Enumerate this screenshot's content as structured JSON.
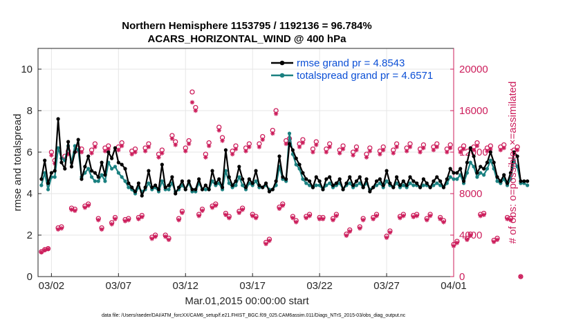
{
  "chart_data": {
    "type": "line",
    "title": "Northern Hemisphere 1153795 / 1192136 = 96.784%",
    "subtitle": "ACARS_HORIZONTAL_WIND @ 400 hPa",
    "xlabel": "Mar.01,2015 00:00:00 start",
    "ylabel": "rmse and totalspread",
    "ylabel_right": "# of obs: o=possible; ×=assimilated",
    "x_ticks": [
      "03/02",
      "03/07",
      "03/12",
      "03/17",
      "03/22",
      "03/27",
      "04/01"
    ],
    "y_ticks": [
      "0",
      "2",
      "4",
      "6",
      "8",
      "10"
    ],
    "y2_ticks": [
      "0",
      "4000",
      "8000",
      "12000",
      "16000",
      "20000"
    ],
    "xlim_days": [
      0.5,
      31.5
    ],
    "ylim": [
      0,
      11
    ],
    "y2lim": [
      0,
      22000
    ],
    "colors": {
      "rmse": "#000000",
      "spread": "#1a8080",
      "obs": "#cc1d5b",
      "legend_text": "#0b4fd6"
    },
    "legend": [
      {
        "name": "rmse grand pr = 4.8543"
      },
      {
        "name": "totalspread grand pr = 4.6571"
      }
    ],
    "series": [
      {
        "name": "rmse",
        "x_start_day": 0.75,
        "x_step_day": 0.25,
        "values": [
          4.7,
          5.6,
          4.5,
          5.0,
          5.1,
          7.6,
          5.5,
          5.2,
          6.5,
          5.3,
          6.0,
          6.6,
          4.7,
          5.3,
          5.8,
          5.1,
          5.0,
          4.8,
          5.5,
          4.9,
          6.0,
          5.7,
          6.2,
          5.5,
          5.4,
          5.2,
          4.5,
          4.3,
          4.1,
          4.5,
          3.9,
          4.3,
          5.1,
          4.3,
          4.4,
          4.2,
          5.4,
          4.3,
          4.4,
          4.8,
          4.0,
          4.3,
          4.6,
          4.2,
          4.6,
          4.2,
          4.2,
          4.7,
          4.2,
          4.4,
          4.2,
          5.1,
          4.5,
          4.7,
          4.3,
          6.1,
          4.8,
          4.4,
          4.6,
          5.3,
          4.7,
          4.3,
          4.7,
          4.5,
          5.1,
          4.4,
          4.3,
          4.5,
          4.1,
          4.2,
          4.6,
          5.8,
          4.8,
          4.7,
          6.4,
          6.1,
          5.7,
          5.4,
          5.0,
          4.7,
          4.6,
          4.3,
          4.8,
          4.6,
          4.2,
          4.7,
          4.8,
          4.4,
          4.5,
          4.7,
          4.2,
          4.5,
          4.8,
          4.4,
          4.6,
          4.8,
          4.3,
          4.7,
          4.1,
          4.3,
          4.6,
          4.7,
          4.4,
          5.1,
          4.5,
          4.3,
          4.8,
          4.4,
          4.6,
          4.4,
          4.8,
          4.6,
          4.5,
          4.3,
          4.7,
          4.5,
          4.3,
          4.6,
          4.8,
          4.6,
          4.3,
          4.7,
          5.2,
          5.0,
          5.0,
          5.2,
          4.6,
          5.5,
          6.2,
          5.8,
          5.0,
          5.3,
          5.2,
          5.5,
          6.0,
          5.5,
          4.8,
          4.6,
          4.9,
          4.5,
          5.0,
          6.0,
          5.8,
          4.6,
          4.6,
          4.6
        ]
      },
      {
        "name": "totalspread",
        "x_start_day": 0.75,
        "x_step_day": 0.25,
        "values": [
          4.4,
          5.0,
          4.2,
          4.8,
          4.8,
          6.2,
          5.7,
          5.6,
          6.3,
          5.5,
          6.3,
          6.1,
          4.8,
          5.0,
          5.2,
          4.8,
          4.6,
          4.6,
          4.9,
          4.6,
          5.5,
          5.2,
          5.3,
          5.0,
          4.8,
          4.6,
          4.3,
          4.2,
          4.0,
          4.3,
          4.1,
          4.2,
          4.5,
          4.2,
          4.3,
          4.1,
          4.6,
          4.2,
          4.2,
          4.5,
          4.1,
          4.2,
          4.4,
          4.2,
          4.5,
          4.1,
          4.1,
          4.5,
          4.2,
          4.2,
          4.2,
          4.6,
          4.4,
          4.5,
          4.2,
          5.1,
          4.5,
          4.3,
          4.4,
          4.8,
          4.4,
          4.2,
          4.5,
          4.4,
          4.6,
          4.3,
          4.3,
          4.4,
          4.2,
          4.2,
          4.4,
          5.3,
          4.7,
          4.6,
          6.9,
          5.9,
          5.4,
          5.2,
          4.7,
          4.5,
          4.4,
          4.3,
          4.4,
          4.4,
          4.2,
          4.4,
          4.5,
          4.3,
          4.4,
          4.5,
          4.2,
          4.4,
          4.5,
          4.3,
          4.4,
          4.5,
          4.3,
          4.5,
          4.2,
          4.3,
          4.4,
          4.5,
          4.3,
          4.6,
          4.4,
          4.3,
          4.5,
          4.3,
          4.4,
          4.3,
          4.5,
          4.4,
          4.4,
          4.3,
          4.4,
          4.4,
          4.3,
          4.4,
          4.5,
          4.4,
          4.3,
          4.5,
          4.8,
          4.7,
          4.7,
          4.9,
          4.5,
          5.0,
          5.5,
          5.3,
          4.8,
          5.0,
          4.9,
          5.2,
          5.6,
          5.2,
          4.6,
          4.5,
          4.7,
          4.4,
          4.7,
          5.6,
          5.3,
          4.5,
          4.5,
          4.4
        ]
      },
      {
        "name": "obs_possible",
        "x_start_day": 0.75,
        "x_step_day": 0.25,
        "values": [
          2400,
          2600,
          2700,
          12000,
          11200,
          4700,
          4800,
          11600,
          12100,
          6600,
          6500,
          12400,
          12300,
          6800,
          7000,
          12200,
          12800,
          5600,
          4700,
          12400,
          12600,
          5200,
          5700,
          12500,
          12900,
          5500,
          5600,
          12100,
          12300,
          5700,
          5900,
          12400,
          12800,
          3800,
          4000,
          11800,
          12200,
          4000,
          3700,
          13600,
          13000,
          5600,
          6300,
          12400,
          13100,
          17800,
          16300,
          6000,
          6500,
          11800,
          12900,
          6800,
          7000,
          14400,
          13400,
          6100,
          5800,
          12100,
          12600,
          6300,
          6600,
          12400,
          12800,
          6000,
          5800,
          12800,
          13500,
          3300,
          3600,
          14100,
          16000,
          6700,
          7000,
          13100,
          13300,
          5800,
          5400,
          12800,
          13200,
          5800,
          6000,
          12300,
          13000,
          5700,
          5700,
          12300,
          12800,
          5600,
          6000,
          12200,
          12600,
          4100,
          4500,
          12000,
          12500,
          4800,
          5600,
          11800,
          12400,
          5700,
          6000,
          12100,
          12500,
          3900,
          4400,
          12200,
          12800,
          5800,
          6000,
          12400,
          12800,
          5900,
          6000,
          12300,
          12700,
          5600,
          6000,
          12500,
          12800,
          5700,
          5400,
          12300,
          12700,
          3100,
          3400,
          12300,
          12600,
          3700,
          4100,
          12500,
          12900,
          6000,
          6100,
          12400,
          12600,
          3500,
          3700,
          12500,
          12700,
          5700,
          5600,
          12200,
          12500,
          0
        ]
      },
      {
        "name": "obs_assimilated",
        "x_start_day": 0.75,
        "x_step_day": 0.25,
        "values": [
          2350,
          2550,
          2650,
          11700,
          10900,
          4550,
          4650,
          11300,
          11800,
          6450,
          6350,
          12100,
          12000,
          6650,
          6850,
          11900,
          12500,
          5450,
          4550,
          12100,
          12300,
          5050,
          5550,
          12200,
          12600,
          5350,
          5450,
          11800,
          12000,
          5550,
          5750,
          12100,
          12500,
          3650,
          3850,
          11500,
          11900,
          3850,
          3550,
          13300,
          12700,
          5450,
          6150,
          12100,
          12800,
          16800,
          16000,
          5850,
          6350,
          11500,
          12600,
          6650,
          6850,
          14100,
          13100,
          5950,
          5650,
          11800,
          12300,
          6150,
          6450,
          12100,
          12500,
          5850,
          5650,
          12500,
          13200,
          3150,
          3450,
          13800,
          15700,
          6550,
          6850,
          12800,
          13000,
          5650,
          5250,
          12500,
          12900,
          5650,
          5850,
          12000,
          12700,
          5550,
          5550,
          12000,
          12500,
          5450,
          5850,
          11900,
          12300,
          3950,
          4350,
          11700,
          12200,
          4650,
          5450,
          11500,
          12100,
          5550,
          5850,
          11800,
          12200,
          3750,
          4250,
          11900,
          12500,
          5650,
          5850,
          12100,
          12500,
          5750,
          5850,
          12000,
          12400,
          5450,
          5850,
          12200,
          12500,
          5550,
          5250,
          12000,
          12400,
          2950,
          3250,
          12000,
          12300,
          3550,
          3950,
          12200,
          12600,
          5850,
          5950,
          12100,
          12300,
          3350,
          3550,
          12200,
          12400,
          5550,
          5450,
          11900,
          12200,
          0
        ]
      }
    ]
  },
  "footer": "data file: /Users/raeder/DAI/ATM_forcXX/CAM6_setup/f.e21.FHIST_BGC.f09_025.CAM6assim.011/Diags_NTrS_2015-03/obs_diag_output.nc"
}
